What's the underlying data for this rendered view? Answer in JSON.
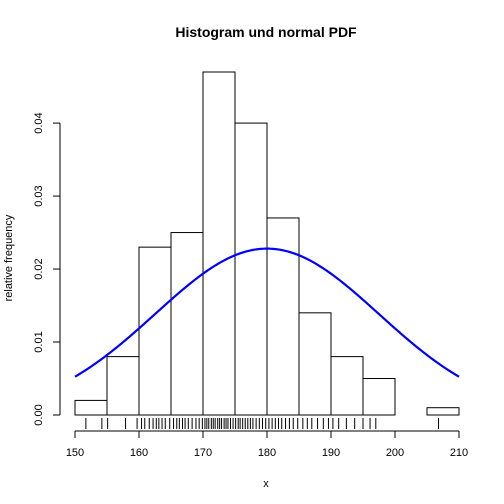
{
  "chart_data": {
    "type": "bar",
    "title": "Histogram und normal PDF",
    "xlabel": "x",
    "ylabel": "relative frequency",
    "xlim": [
      150,
      210
    ],
    "ylim": [
      0,
      0.047
    ],
    "x_ticks": [
      150,
      160,
      170,
      180,
      190,
      200,
      210
    ],
    "y_ticks": [
      "0.00",
      "0.01",
      "0.02",
      "0.03",
      "0.04"
    ],
    "grid": false,
    "legend": "none",
    "bins": [
      {
        "x0": 150,
        "x1": 155,
        "value": 0.002
      },
      {
        "x0": 155,
        "x1": 160,
        "value": 0.008
      },
      {
        "x0": 160,
        "x1": 165,
        "value": 0.023
      },
      {
        "x0": 165,
        "x1": 170,
        "value": 0.025
      },
      {
        "x0": 170,
        "x1": 175,
        "value": 0.047
      },
      {
        "x0": 175,
        "x1": 180,
        "value": 0.04
      },
      {
        "x0": 180,
        "x1": 185,
        "value": 0.027
      },
      {
        "x0": 185,
        "x1": 190,
        "value": 0.014
      },
      {
        "x0": 190,
        "x1": 195,
        "value": 0.008
      },
      {
        "x0": 195,
        "x1": 200,
        "value": 0.005
      },
      {
        "x0": 200,
        "x1": 205,
        "value": 0.0
      },
      {
        "x0": 205,
        "x1": 210,
        "value": 0.001
      }
    ],
    "curve": {
      "type": "normal_pdf",
      "mean": 180,
      "sd": 17.5,
      "color": "#0000ff"
    },
    "rug": [
      151.7,
      154.2,
      155.1,
      157.9,
      159.7,
      160.4,
      160.9,
      161.6,
      162.2,
      162.7,
      163.1,
      163.6,
      164.1,
      164.8,
      165.4,
      165.9,
      166.3,
      166.8,
      167.2,
      167.7,
      168.3,
      168.9,
      169.4,
      169.9,
      170.3,
      170.6,
      170.9,
      171.3,
      171.6,
      171.9,
      172.3,
      172.6,
      172.9,
      173.3,
      173.6,
      173.9,
      174.3,
      174.7,
      175.1,
      175.5,
      175.8,
      176.2,
      176.6,
      177.0,
      177.4,
      177.8,
      178.3,
      178.8,
      179.3,
      179.8,
      180.3,
      180.8,
      181.3,
      181.8,
      182.3,
      182.9,
      183.5,
      184.1,
      184.8,
      185.6,
      186.3,
      187.0,
      187.9,
      188.8,
      189.6,
      190.3,
      191.2,
      192.4,
      193.7,
      195.0,
      196.1,
      197.0,
      206.8
    ]
  }
}
